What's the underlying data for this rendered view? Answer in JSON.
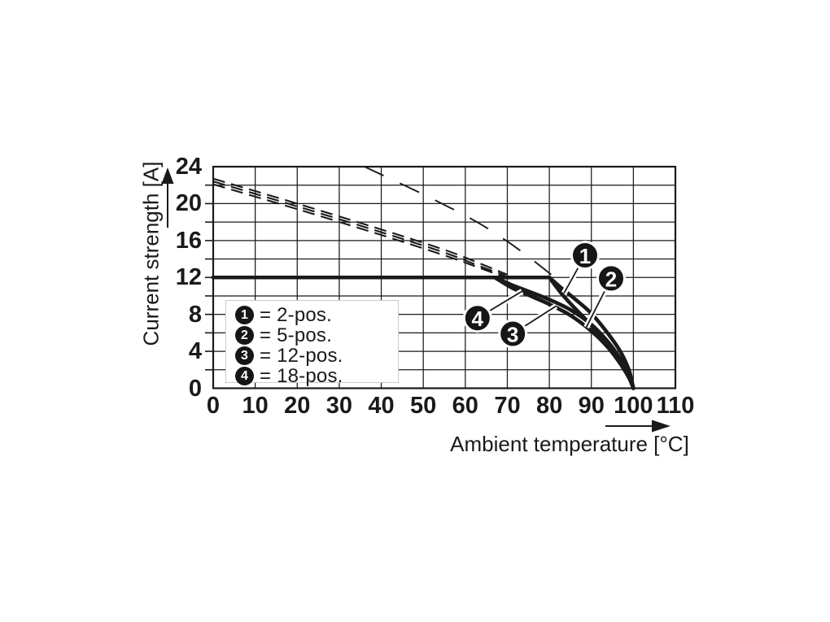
{
  "chart_data": {
    "type": "line",
    "title": "",
    "xlabel": "Ambient temperature [°C]",
    "ylabel": "Current strength [A]",
    "xlim": [
      0,
      110
    ],
    "ylim": [
      0,
      24
    ],
    "x_ticks": [
      0,
      10,
      20,
      30,
      40,
      50,
      60,
      70,
      80,
      90,
      100,
      110
    ],
    "y_ticks": [
      0,
      4,
      8,
      12,
      16,
      20,
      24
    ],
    "x_grid_step": 10,
    "y_grid_step": 2,
    "grid_on": true,
    "ink_color": "#1a1a1a",
    "legend_position": "inside lower-left",
    "legend": [
      {
        "marker": "1",
        "label": "= 2-pos."
      },
      {
        "marker": "2",
        "label": "= 5-pos."
      },
      {
        "marker": "3",
        "label": "= 12-pos."
      },
      {
        "marker": "4",
        "label": "= 18-pos."
      }
    ],
    "series": [
      {
        "name": "2-pos. derating (solid)",
        "style": "solid",
        "limit_current_a": 12,
        "derate_start_c": 80,
        "drop": [
          [
            80,
            12
          ],
          [
            83,
            10.8
          ],
          [
            86,
            9.7
          ],
          [
            90,
            8.1
          ],
          [
            94,
            5.9
          ],
          [
            97,
            3.9
          ],
          [
            99,
            1.9
          ],
          [
            100,
            0
          ]
        ]
      },
      {
        "name": "5-pos. derating (solid)",
        "style": "solid",
        "limit_current_a": 12,
        "derate_start_c": 80,
        "drop": [
          [
            80,
            12
          ],
          [
            83,
            10.2
          ],
          [
            86,
            8.7
          ],
          [
            90,
            6.8
          ],
          [
            94,
            4.5
          ],
          [
            97,
            2.6
          ],
          [
            99,
            1.1
          ],
          [
            100,
            0
          ]
        ]
      },
      {
        "name": "12-pos. derating (solid)",
        "style": "solid",
        "limit_current_a": 12,
        "derate_start_c": 67,
        "drop": [
          [
            67,
            12
          ],
          [
            71,
            10.9
          ],
          [
            75,
            10.1
          ],
          [
            80,
            9.1
          ],
          [
            85,
            7.9
          ],
          [
            90,
            6.2
          ],
          [
            94,
            4.4
          ],
          [
            97,
            2.6
          ],
          [
            99,
            1.1
          ],
          [
            100,
            0
          ]
        ]
      },
      {
        "name": "18-pos. derating (solid)",
        "style": "solid",
        "limit_current_a": 12,
        "derate_start_c": 67,
        "drop": [
          [
            67,
            12
          ],
          [
            71,
            11.2
          ],
          [
            75,
            10.5
          ],
          [
            80,
            9.6
          ],
          [
            85,
            8.5
          ],
          [
            90,
            6.9
          ],
          [
            94,
            5.0
          ],
          [
            97,
            3.1
          ],
          [
            99,
            1.4
          ],
          [
            100,
            0
          ]
        ]
      }
    ],
    "series_dashed": [
      {
        "name": "2-pos. capacity (dashed)",
        "dash": "26 22",
        "width": 1.9,
        "points": [
          [
            36,
            24
          ],
          [
            50,
            21
          ],
          [
            62,
            18.2
          ],
          [
            70,
            15.9
          ],
          [
            76,
            13.9
          ],
          [
            81,
            12.1
          ]
        ]
      },
      {
        "name": "5-pos. capacity (dashed)",
        "dash": "15 8",
        "width": 2.1,
        "points": [
          [
            0,
            22.7
          ],
          [
            20,
            20.0
          ],
          [
            40,
            17.2
          ],
          [
            55,
            15.0
          ],
          [
            63,
            13.6
          ],
          [
            70,
            12.3
          ]
        ]
      },
      {
        "name": "18-pos. capacity (dashed)",
        "dash": "15 8",
        "width": 2.1,
        "points": [
          [
            0,
            22.4
          ],
          [
            20,
            19.7
          ],
          [
            40,
            16.9
          ],
          [
            55,
            14.7
          ],
          [
            63,
            13.3
          ],
          [
            69.5,
            12.2
          ]
        ]
      },
      {
        "name": "12-pos. capacity (dashed)",
        "dash": "15 8",
        "width": 2.1,
        "points": [
          [
            0,
            22.1
          ],
          [
            20,
            19.4
          ],
          [
            40,
            16.6
          ],
          [
            55,
            14.4
          ],
          [
            63,
            13.1
          ],
          [
            69,
            12.1
          ]
        ]
      }
    ],
    "annotations": [
      {
        "n": "1",
        "cx": 88.5,
        "cy": 14.4,
        "tx": 83.5,
        "ty": 10.3
      },
      {
        "n": "2",
        "cx": 94.7,
        "cy": 11.9,
        "tx": 88.8,
        "ty": 6.6
      },
      {
        "n": "3",
        "cx": 71.3,
        "cy": 5.9,
        "tx": 81.6,
        "ty": 8.9
      },
      {
        "n": "4",
        "cx": 62.9,
        "cy": 7.6,
        "tx": 73.5,
        "ty": 10.5
      }
    ]
  }
}
